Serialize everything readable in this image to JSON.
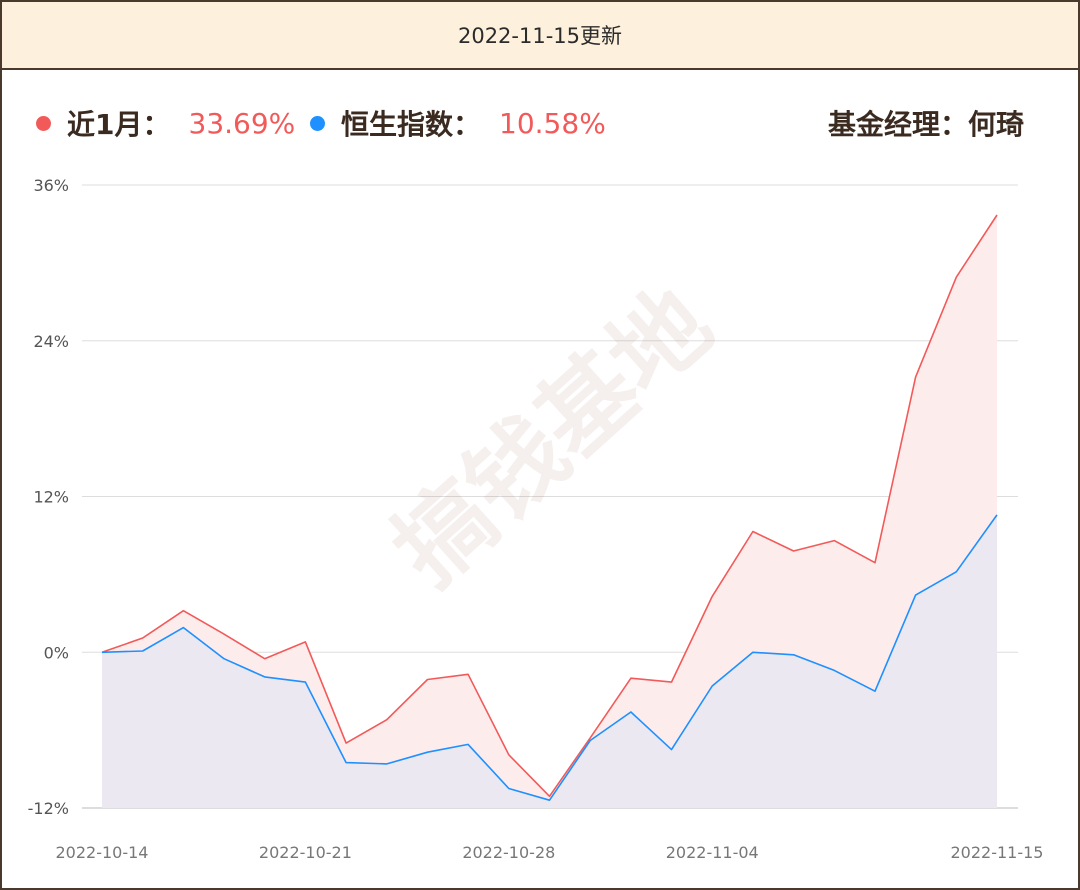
{
  "header": {
    "title": "2022-11-15更新"
  },
  "legend": [
    {
      "label": "近1月",
      "value": "33.69%",
      "dot_color": "#f25a5a"
    },
    {
      "label": "恒生指数",
      "value": "10.58%",
      "dot_color": "#1e90ff"
    }
  ],
  "manager": {
    "label": "基金经理",
    "name": "何琦"
  },
  "watermark": "搞钱基地",
  "chart_data": {
    "type": "area",
    "y_ticks": [
      "36%",
      "24%",
      "12%",
      "0%",
      "-12%"
    ],
    "ylim": [
      -12,
      36
    ],
    "x_tick_labels": [
      "2022-10-14",
      "2022-10-21",
      "2022-10-28",
      "2022-11-04",
      "2022-11-15"
    ],
    "x": [
      "2022-10-14",
      "2022-10-17",
      "2022-10-18",
      "2022-10-19",
      "2022-10-20",
      "2022-10-21",
      "2022-10-24",
      "2022-10-25",
      "2022-10-26",
      "2022-10-27",
      "2022-10-28",
      "2022-10-31",
      "2022-11-01",
      "2022-11-02",
      "2022-11-03",
      "2022-11-04",
      "2022-11-07",
      "2022-11-08",
      "2022-11-09",
      "2022-11-10",
      "2022-11-11",
      "2022-11-14",
      "2022-11-15"
    ],
    "grid": true,
    "series": [
      {
        "name": "近1月",
        "color": "#f25a5a",
        "fill": "#fdecec",
        "values": [
          0,
          1.1,
          3.2,
          1.4,
          -0.5,
          0.8,
          -7.0,
          -5.2,
          -2.1,
          -1.7,
          -7.9,
          -11.1,
          -6.6,
          -2.0,
          -2.3,
          4.3,
          9.3,
          7.8,
          8.6,
          6.9,
          21.2,
          28.9,
          33.69
        ]
      },
      {
        "name": "恒生指数",
        "color": "#1e90ff",
        "fill": "#ece8f1",
        "values": [
          0,
          0.1,
          1.9,
          -0.5,
          -1.9,
          -2.3,
          -8.5,
          -8.6,
          -7.7,
          -7.1,
          -10.5,
          -11.4,
          -6.8,
          -4.6,
          -7.5,
          -2.6,
          0,
          -0.2,
          -1.4,
          -3.0,
          4.4,
          6.2,
          10.58
        ]
      }
    ]
  }
}
